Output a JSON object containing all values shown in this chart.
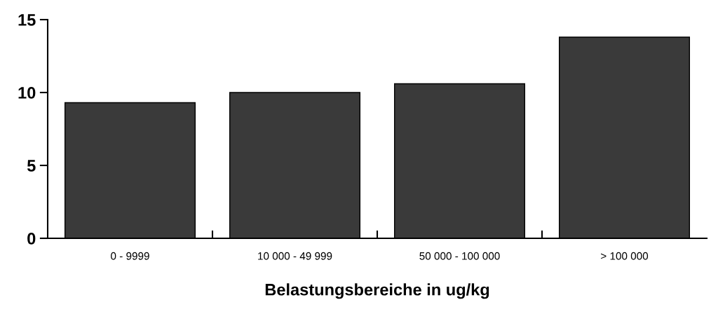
{
  "chart_data": {
    "type": "bar",
    "xlabel": "Belastungsbereiche in ug/kg",
    "categories": [
      "0 - 9999",
      "10 000 - 49 999",
      "50 000 - 100 000",
      "> 100 000"
    ],
    "values": [
      9.3,
      10.0,
      10.6,
      13.8
    ],
    "color": "#3a3a3a",
    "ylim": [
      0,
      15
    ],
    "yticks": [
      0,
      5,
      10,
      15
    ]
  }
}
